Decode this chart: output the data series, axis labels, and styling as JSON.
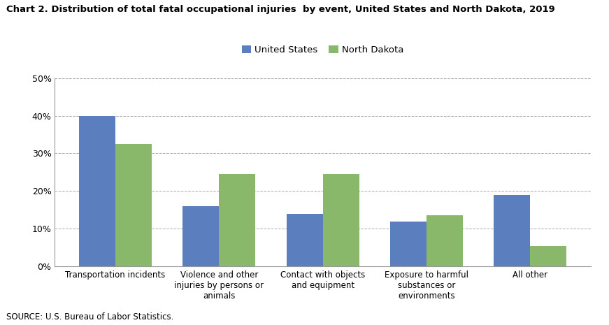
{
  "title": "Chart 2. Distribution of total fatal occupational injuries  by event, United States and North Dakota, 2019",
  "categories": [
    "Transportation incidents",
    "Violence and other\ninjuries by persons or\nanimals",
    "Contact with objects\nand equipment",
    "Exposure to harmful\nsubstances or\nenvironments",
    "All other"
  ],
  "us_values": [
    0.4,
    0.16,
    0.14,
    0.12,
    0.19
  ],
  "nd_values": [
    0.325,
    0.245,
    0.245,
    0.135,
    0.055
  ],
  "us_color": "#5B7FBE",
  "nd_color": "#8AB86A",
  "us_label": "United States",
  "nd_label": "North Dakota",
  "ylim": [
    0,
    0.5
  ],
  "yticks": [
    0,
    0.1,
    0.2,
    0.3,
    0.4,
    0.5
  ],
  "source": "SOURCE: U.S. Bureau of Labor Statistics.",
  "background_color": "#ffffff",
  "grid_color": "#aaaaaa",
  "bar_width": 0.35
}
